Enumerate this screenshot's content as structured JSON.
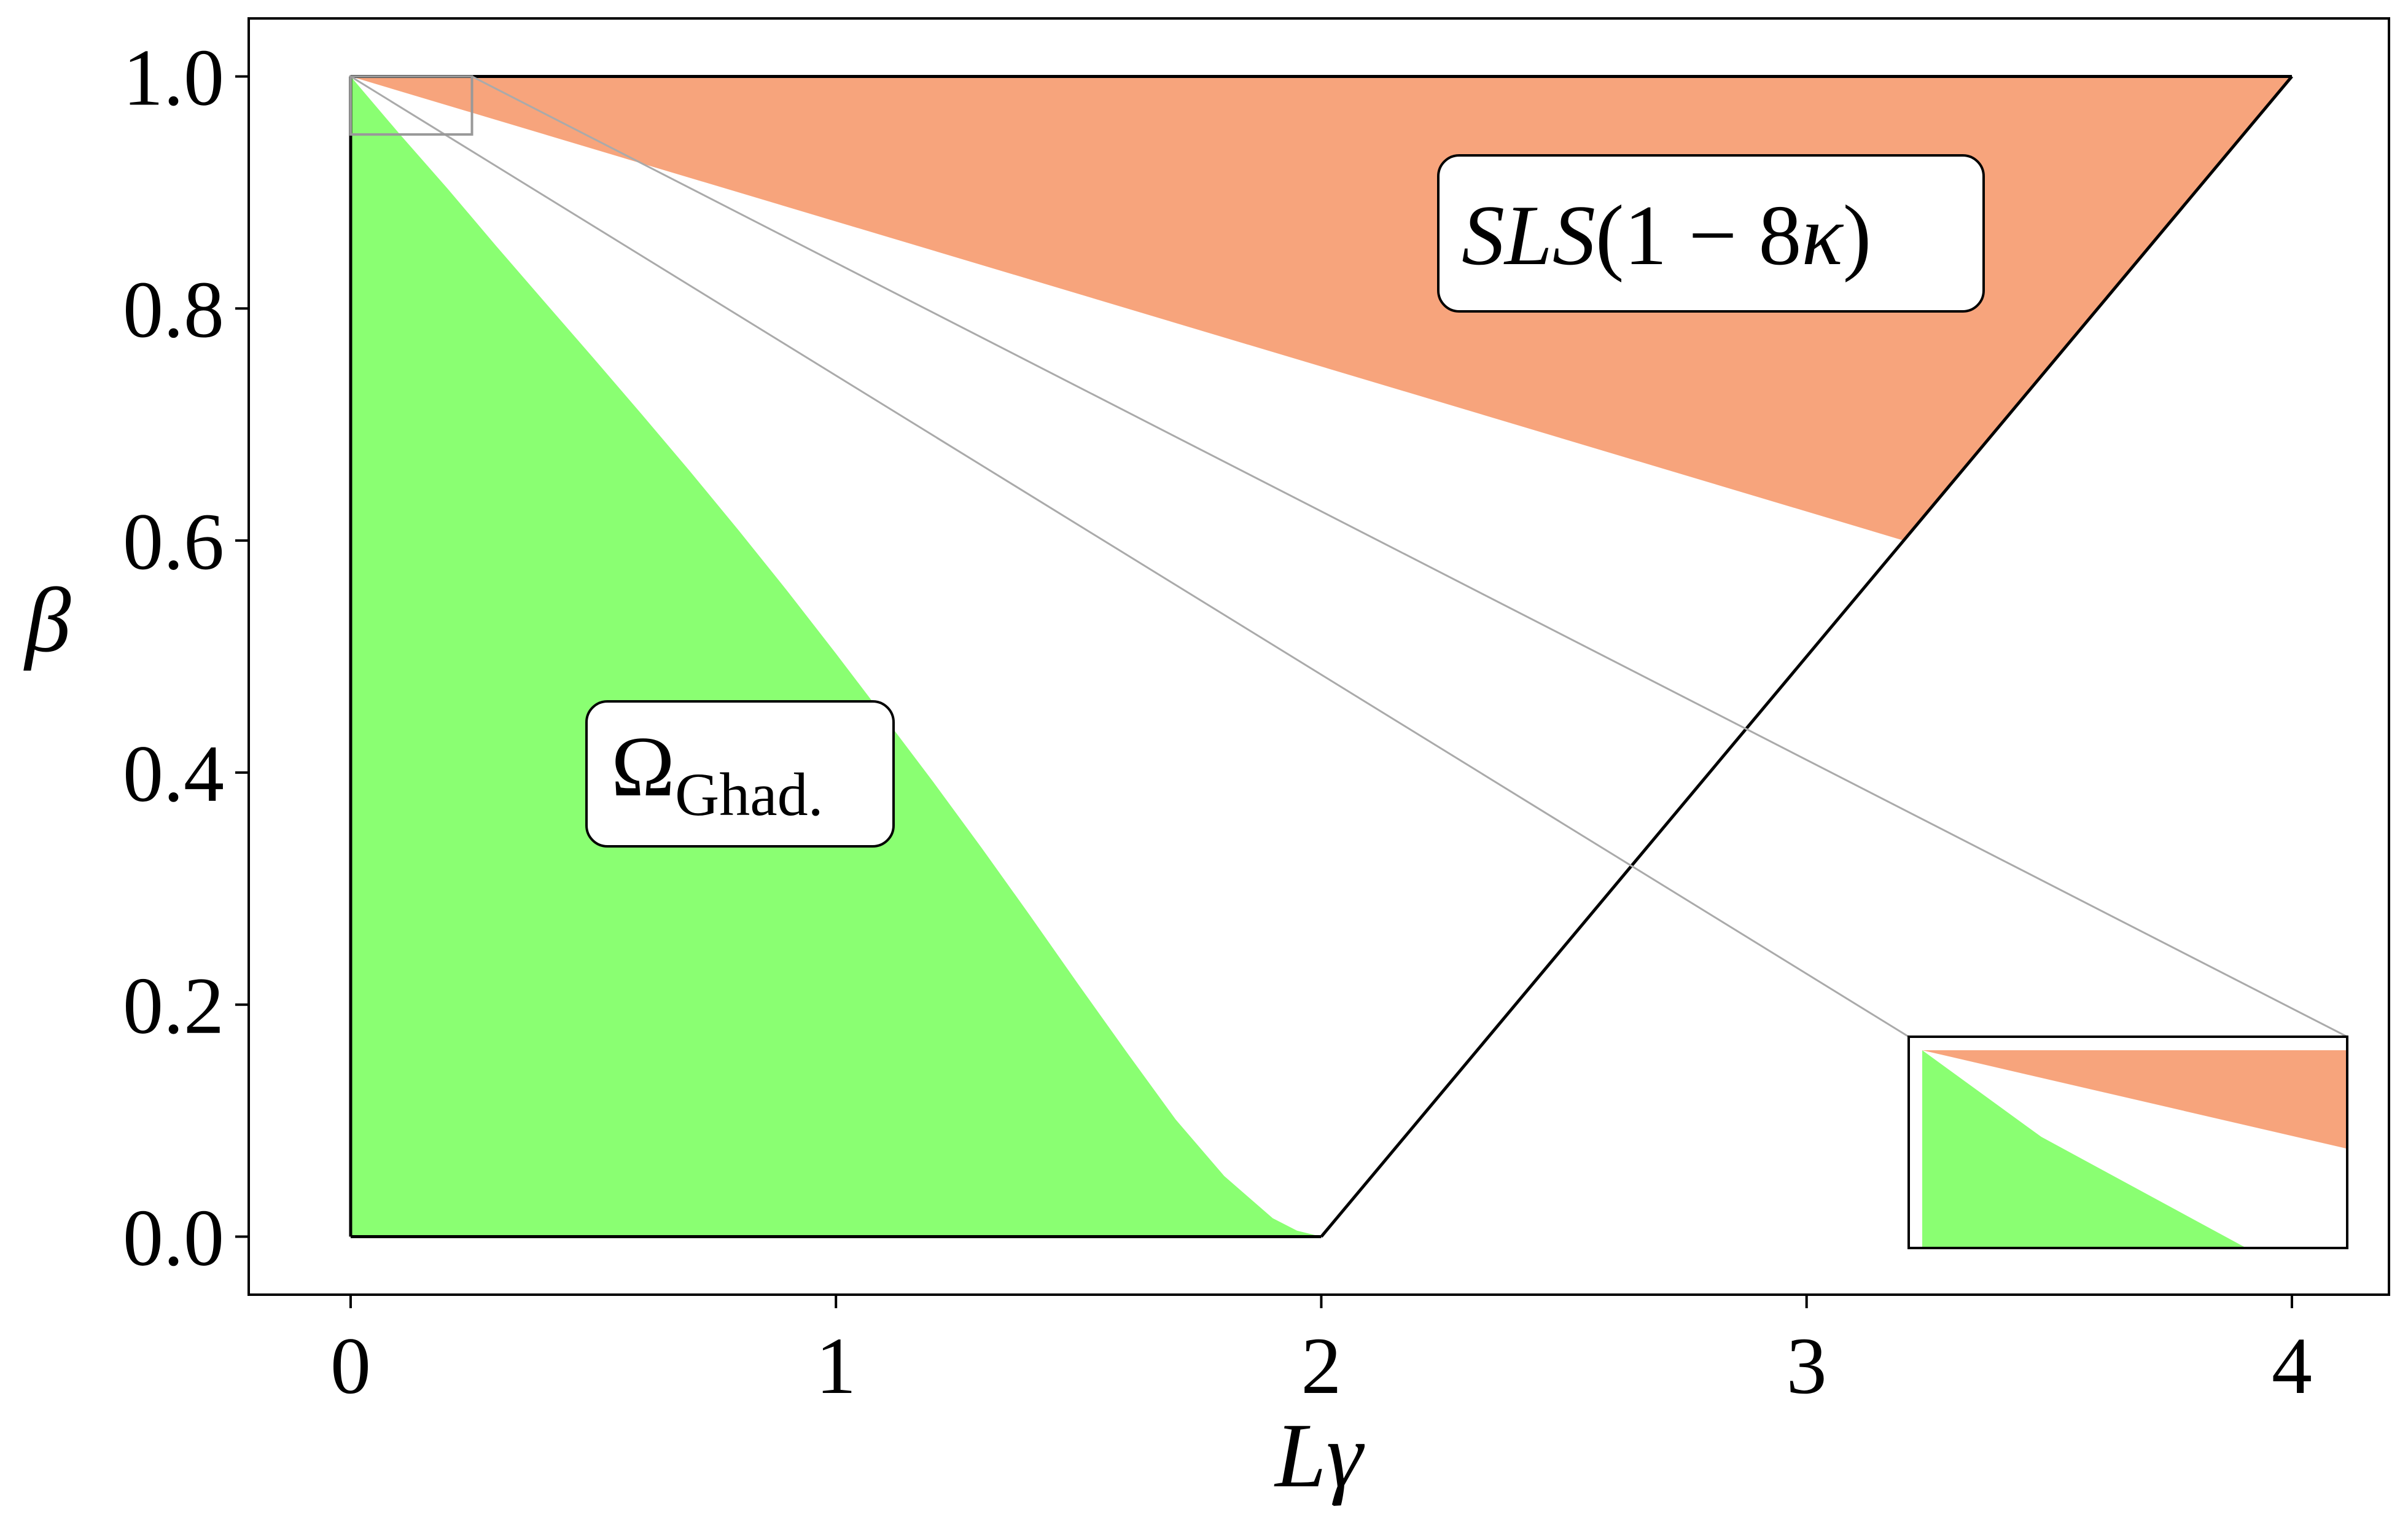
{
  "chart_data": {
    "type": "area",
    "xlabel": "Lγ",
    "ylabel": "β",
    "xlim": [
      -0.21,
      4.2
    ],
    "ylim": [
      -0.05,
      1.05
    ],
    "xticks": [
      0,
      1,
      2,
      3,
      4
    ],
    "yticks": [
      0.0,
      0.2,
      0.4,
      0.6,
      0.8,
      1.0
    ],
    "xtick_labels": [
      "0",
      "1",
      "2",
      "3",
      "4"
    ],
    "ytick_labels": [
      "0.0",
      "0.2",
      "0.4",
      "0.6",
      "0.8",
      "1.0"
    ],
    "grid": false,
    "colors": {
      "green": "#8aff72",
      "salmon": "#f7a47c",
      "boundary": "#000000",
      "connector": "#aaaaaa"
    },
    "regions": [
      {
        "label_main": "Ω",
        "label_sub": "Ghad.",
        "color": "#8aff72",
        "boundary_x": [
          0,
          0.1,
          0.2,
          0.3,
          0.4,
          0.5,
          0.6,
          0.7,
          0.8,
          0.9,
          1.0,
          1.1,
          1.2,
          1.3,
          1.4,
          1.5,
          1.6,
          1.7,
          1.8,
          1.9,
          1.95,
          2.0
        ],
        "boundary_y": [
          1.0,
          0.9508,
          0.9032,
          0.8538,
          0.8055,
          0.7574,
          0.7087,
          0.6593,
          0.6085,
          0.5564,
          0.5026,
          0.4476,
          0.3922,
          0.3352,
          0.2767,
          0.2171,
          0.1585,
          0.101,
          0.0523,
          0.0159,
          0.0052,
          0.0
        ]
      },
      {
        "label_pre": "SLS",
        "label_post": "(1 − 8",
        "label_kappa": "κ",
        "label_close": ")",
        "color": "#f7a47c",
        "vertices_x": [
          0,
          4.0,
          3.2
        ],
        "vertices_y": [
          1.0,
          1.0,
          0.6
        ]
      }
    ],
    "lines": [
      {
        "name": "",
        "x": [
          0,
          0
        ],
        "y": [
          0,
          1.0
        ],
        "color": "#000000"
      },
      {
        "name": "",
        "x": [
          0,
          2.0
        ],
        "y": [
          0,
          0
        ],
        "color": "#000000"
      },
      {
        "name": "",
        "x": [
          2.0,
          4.0
        ],
        "y": [
          0,
          1.0
        ],
        "color": "#000000"
      },
      {
        "name": "",
        "x": [
          0,
          4.0
        ],
        "y": [
          1.0,
          1.0
        ],
        "color": "#000000"
      }
    ],
    "inset": {
      "zoom_xlim": [
        0,
        0.25
      ],
      "zoom_ylim": [
        0.95,
        1.0
      ],
      "placement": "lower-right",
      "green_x": [
        0,
        0.07,
        0.25
      ],
      "green_y": [
        1.0,
        0.9795,
        0.95
      ],
      "salmon_x": [
        0,
        0.25,
        0.25
      ],
      "salmon_y": [
        1.0,
        1.0,
        0.9735
      ]
    }
  }
}
